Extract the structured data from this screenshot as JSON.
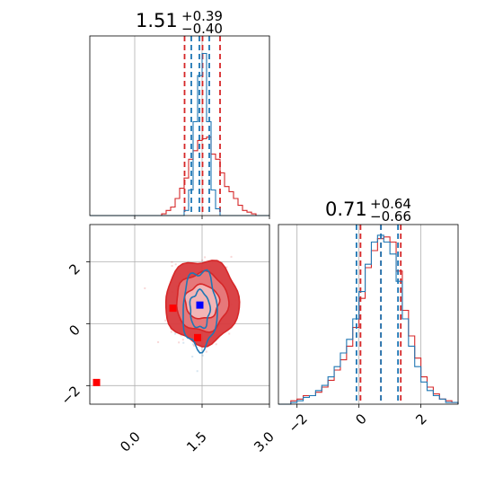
{
  "chart_data": [
    {
      "type": "histogram",
      "panel": "top-left (parameter 1 marginal)",
      "title": {
        "value": "1.51",
        "upper": "+0.39",
        "lower": "−0.40"
      },
      "xlim": [
        -1.0,
        3.0
      ],
      "grid": true,
      "series": [
        {
          "color": "#d62728",
          "bins": [
            -1.0,
            -0.9,
            -0.8,
            -0.7,
            -0.6,
            -0.5,
            -0.4,
            -0.3,
            -0.2,
            -0.1,
            0.0,
            0.1,
            0.2,
            0.3,
            0.4,
            0.5,
            0.6,
            0.7,
            0.8,
            0.9,
            1.0,
            1.1,
            1.2,
            1.3,
            1.4,
            1.5,
            1.6,
            1.7,
            1.8,
            1.9,
            2.0,
            2.1,
            2.2,
            2.3,
            2.4,
            2.5,
            2.6,
            2.7,
            2.8,
            2.9,
            3.0
          ],
          "counts": [
            0,
            0,
            0,
            0,
            0,
            0,
            0,
            0,
            0,
            0,
            0,
            0,
            0,
            0,
            0,
            0,
            0.01,
            0.03,
            0.05,
            0.1,
            0.16,
            0.22,
            0.33,
            0.38,
            0.44,
            0.45,
            0.46,
            0.36,
            0.33,
            0.25,
            0.17,
            0.14,
            0.1,
            0.06,
            0.03,
            0.02,
            0.01,
            0,
            0,
            0
          ],
          "quantile_lines": [
            1.11,
            1.51,
            1.9
          ]
        },
        {
          "color": "#1f77b4",
          "bins": [
            -1.0,
            -0.9,
            -0.8,
            -0.7,
            -0.6,
            -0.5,
            -0.4,
            -0.3,
            -0.2,
            -0.1,
            0.0,
            0.1,
            0.2,
            0.3,
            0.4,
            0.5,
            0.6,
            0.7,
            0.8,
            0.9,
            1.0,
            1.1,
            1.2,
            1.3,
            1.4,
            1.5,
            1.6,
            1.7,
            1.8,
            1.9,
            2.0,
            2.1,
            2.2,
            2.3,
            2.4,
            2.5,
            2.6,
            2.7,
            2.8,
            2.9,
            3.0
          ],
          "counts": [
            0,
            0,
            0,
            0,
            0,
            0,
            0,
            0,
            0,
            0,
            0,
            0,
            0,
            0,
            0,
            0,
            0,
            0,
            0,
            0,
            0,
            0.03,
            0.15,
            0.55,
            0.82,
            0.95,
            0.55,
            0.15,
            0.04,
            0,
            0,
            0,
            0,
            0,
            0,
            0,
            0,
            0,
            0,
            0
          ],
          "quantile_lines": [
            1.26,
            1.44,
            1.66
          ]
        }
      ]
    },
    {
      "type": "contour",
      "panel": "bottom-left (joint)",
      "xlim": [
        -1.0,
        3.0
      ],
      "ylim": [
        -2.6,
        3.2
      ],
      "xticks": [
        "0.0",
        "1.5",
        "3.0"
      ],
      "yticks": [
        "−2",
        "0",
        "2"
      ],
      "grid": true,
      "series": [
        {
          "color": "#d62728",
          "center": [
            1.5,
            0.7
          ],
          "radii": [
            [
              0.38,
              0.55
            ],
            [
              0.58,
              0.95
            ],
            [
              0.82,
              1.35
            ]
          ],
          "filled": true
        },
        {
          "color": "#1f77b4",
          "center": [
            1.45,
            0.45
          ],
          "radii": [
            [
              0.22,
              0.6
            ],
            [
              0.38,
              1.25
            ]
          ],
          "filled": false
        }
      ],
      "markers": [
        {
          "color": "#ff0000",
          "shape": "square",
          "x": 0.85,
          "y": 0.5
        },
        {
          "color": "#ff0000",
          "shape": "square",
          "x": 1.4,
          "y": -0.45
        },
        {
          "color": "#ff0000",
          "shape": "square",
          "x": -0.85,
          "y": -1.9
        },
        {
          "color": "#0000ff",
          "shape": "square",
          "x": 1.45,
          "y": 0.6
        }
      ]
    },
    {
      "type": "histogram",
      "panel": "bottom-right (parameter 2 marginal)",
      "title": {
        "value": "0.71",
        "upper": "+0.64",
        "lower": "−0.66"
      },
      "xlim": [
        -2.6,
        3.2
      ],
      "xticks": [
        "−2",
        "0",
        "2"
      ],
      "grid": true,
      "series": [
        {
          "color": "#d62728",
          "bins": [
            -2.6,
            -2.4,
            -2.2,
            -2.0,
            -1.8,
            -1.6,
            -1.4,
            -1.2,
            -1.0,
            -0.8,
            -0.6,
            -0.4,
            -0.2,
            0.0,
            0.2,
            0.4,
            0.6,
            0.8,
            1.0,
            1.2,
            1.4,
            1.6,
            1.8,
            2.0,
            2.2,
            2.4,
            2.6,
            2.8,
            3.0,
            3.2
          ],
          "counts": [
            0,
            0,
            0.02,
            0.03,
            0.05,
            0.05,
            0.07,
            0.1,
            0.14,
            0.2,
            0.26,
            0.34,
            0.45,
            0.62,
            0.8,
            0.9,
            0.97,
            0.98,
            0.95,
            0.78,
            0.55,
            0.4,
            0.27,
            0.16,
            0.1,
            0.06,
            0.03,
            0.02,
            0.01
          ],
          "quantile_lines": [
            0.05,
            0.71,
            1.35
          ]
        },
        {
          "color": "#1f77b4",
          "bins": [
            -2.6,
            -2.4,
            -2.2,
            -2.0,
            -1.8,
            -1.6,
            -1.4,
            -1.2,
            -1.0,
            -0.8,
            -0.6,
            -0.4,
            -0.2,
            0.0,
            0.2,
            0.4,
            0.6,
            0.8,
            1.0,
            1.2,
            1.4,
            1.6,
            1.8,
            2.0,
            2.2,
            2.4,
            2.6,
            2.8,
            3.0,
            3.2
          ],
          "counts": [
            0,
            0,
            0.01,
            0.02,
            0.04,
            0.05,
            0.08,
            0.11,
            0.16,
            0.22,
            0.3,
            0.38,
            0.5,
            0.66,
            0.82,
            0.95,
            0.99,
            0.95,
            0.88,
            0.72,
            0.5,
            0.34,
            0.22,
            0.13,
            0.08,
            0.05,
            0.03,
            0.01,
            0.01
          ],
          "quantile_lines": [
            -0.08,
            0.71,
            1.26
          ]
        }
      ]
    }
  ]
}
